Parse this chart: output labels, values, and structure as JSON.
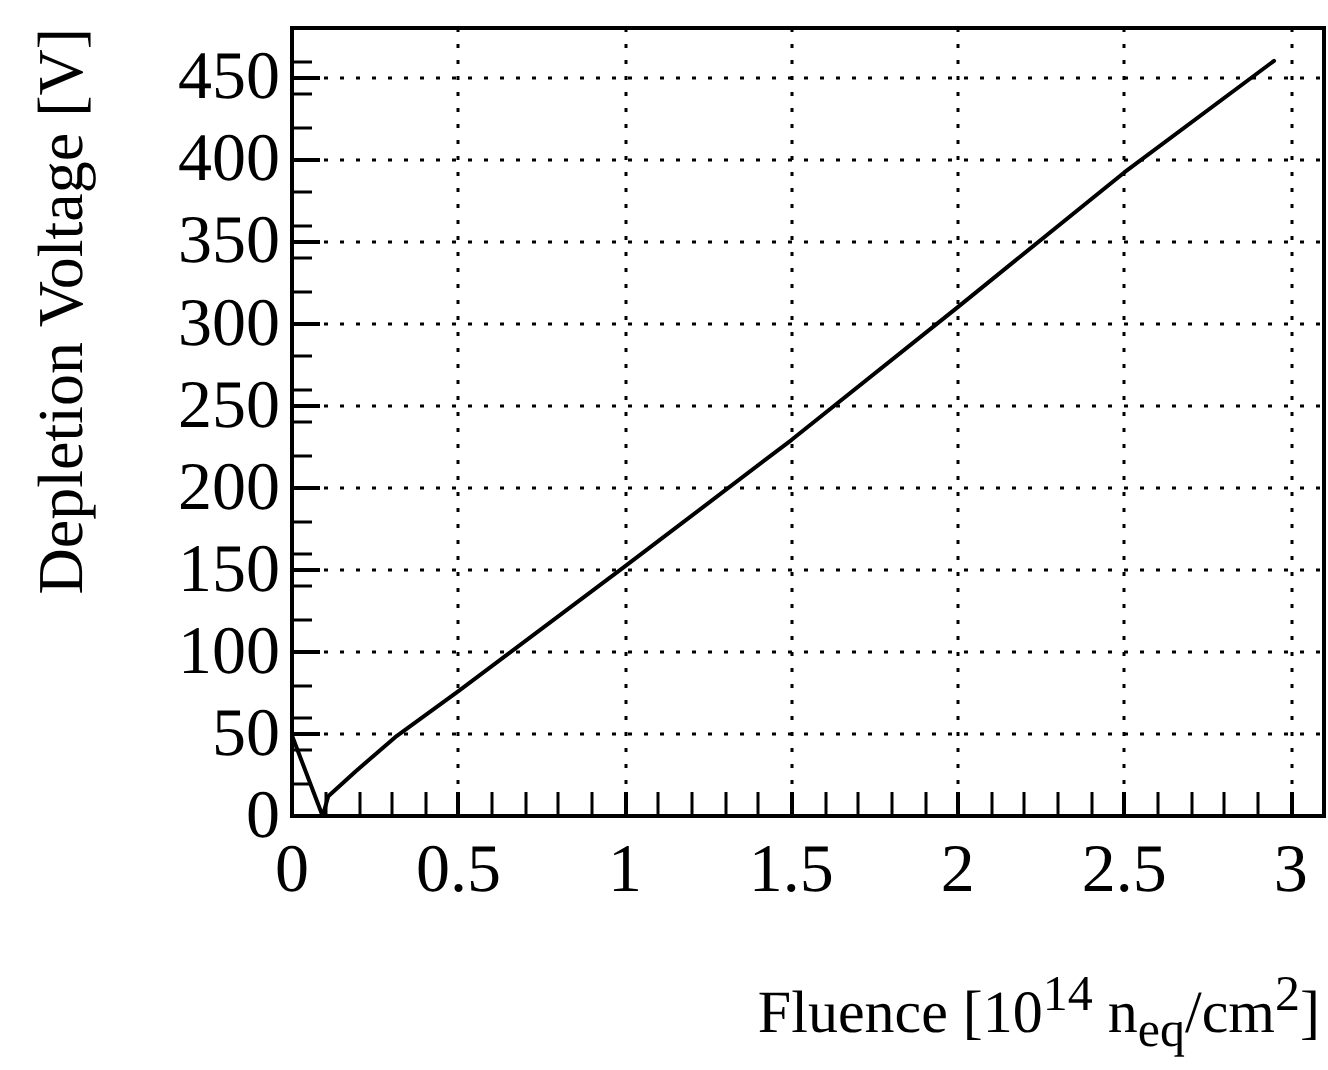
{
  "chart_data": {
    "type": "line",
    "xlabel": "Fluence [10$^{14}$ n$_{eq}$/cm$^{2}$]",
    "ylabel": "Depletion Voltage [V]",
    "series": [
      {
        "color": "#000000",
        "x": [
          0,
          0.092,
          0.109,
          0.19,
          0.31,
          0.5,
          1.0,
          1.5,
          2.0,
          2.5,
          2.95
        ],
        "values": [
          49,
          0,
          12,
          27,
          48,
          76,
          152,
          229,
          310,
          392,
          460
        ]
      }
    ],
    "xlim": [
      0,
      3.1
    ],
    "xticks": [
      0,
      0.5,
      1,
      1.5,
      2,
      2.5,
      3
    ],
    "ylim": [
      0,
      480
    ],
    "yticks": [
      0,
      50,
      100,
      150,
      200,
      250,
      300,
      350,
      400,
      450
    ],
    "grid": true,
    "marker": "none",
    "line_style": "solid"
  }
}
